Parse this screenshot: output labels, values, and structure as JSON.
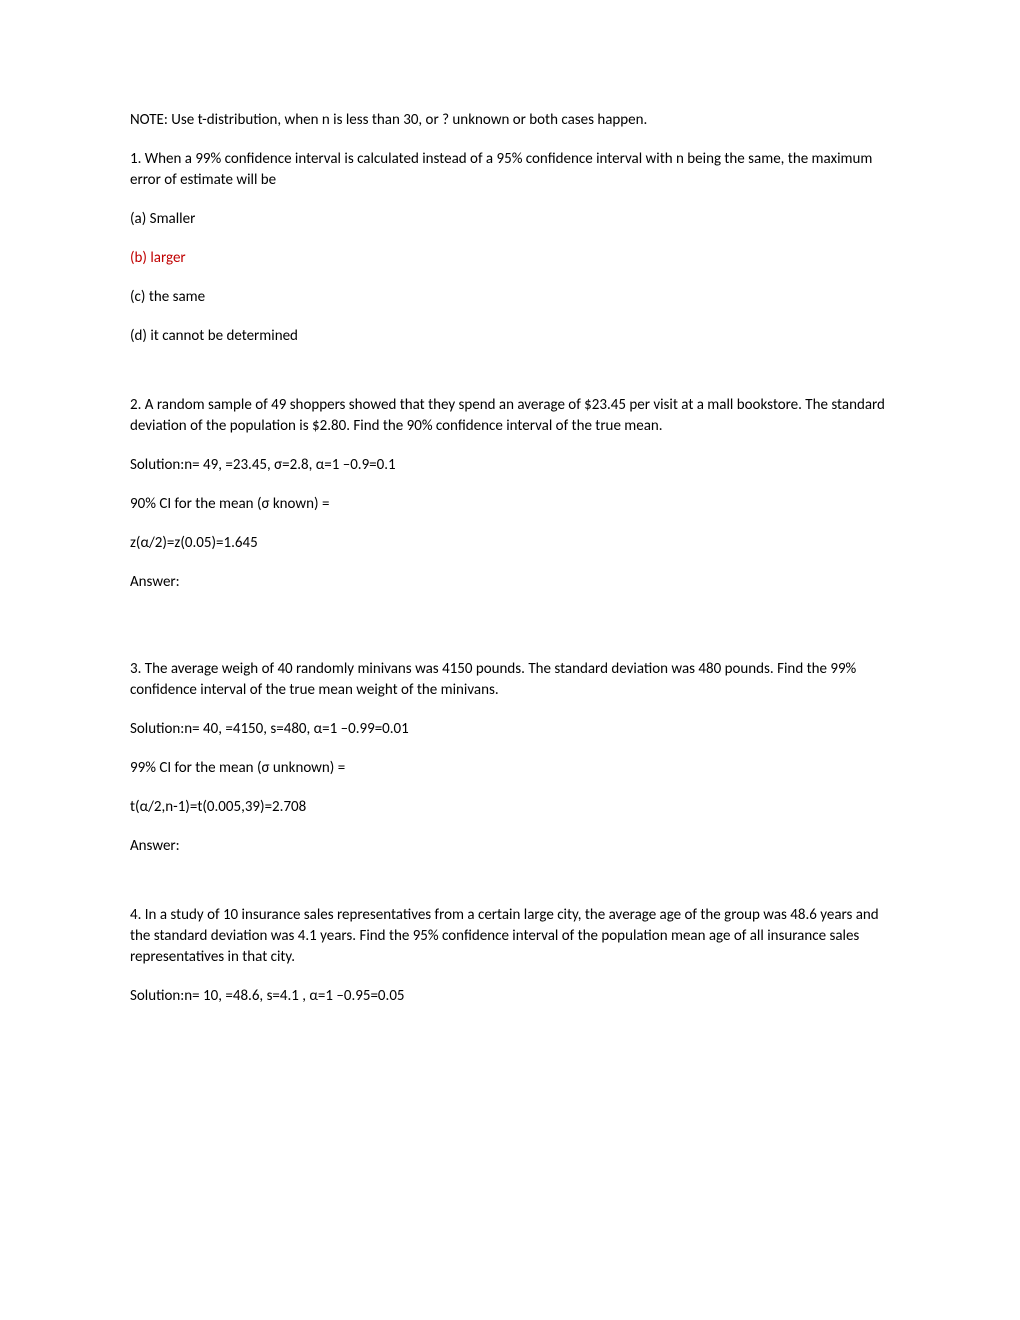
{
  "note": "NOTE: Use t-distribution, when n is less than 30, or ? unknown or both cases happen.",
  "q1": {
    "text": "1. When a 99% confidence interval is calculated instead of a 95% confidence interval with n being the same, the maximum error of estimate will be",
    "a": "(a) Smaller",
    "b": "(b) larger",
    "c": "(c) the same",
    "d": "(d) it cannot be determined"
  },
  "q2": {
    "text": "2. A random sample of 49 shoppers showed that they spend an average of $23.45 per visit at a mall bookstore. The standard deviation of the population is $2.80. Find the 90% confidence interval of the true mean.",
    "sol": "Solution:n= 49,  =23.45,  σ=2.8,  α=1 –0.9=0.1",
    "ci": "90% CI  for the mean (σ known) =",
    "z": "z(α/2)=z(0.05)=1.645",
    "ans": "Answer:"
  },
  "q3": {
    "text": "3. The average weigh of 40 randomly minivans was 4150 pounds. The standard deviation was 480 pounds. Find the 99% confidence interval of the true mean weight of the minivans.",
    "sol": "Solution:n= 40,  =4150,  s=480,  α=1 –0.99=0.01",
    "ci": "99% CI  for the mean (σ unknown) =",
    "t": "t(α/2,n-1)=t(0.005,39)=2.708",
    "ans": "Answer:"
  },
  "q4": {
    "text": "4. In a study of 10 insurance sales representatives from a certain large city, the average age of the group was 48.6 years and the standard deviation was 4.1 years. Find the 95% confidence interval of the population mean age of all insurance sales representatives in that city.",
    "sol": "Solution:n= 10,  =48.6,  s=4.1 ,  α=1 –0.95=0.05"
  }
}
